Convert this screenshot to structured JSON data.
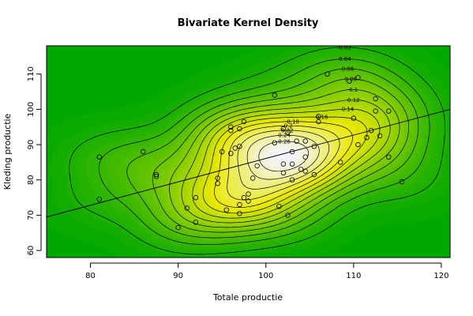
{
  "chart_data": {
    "type": "contour",
    "title": "Bivariate Kernel Density",
    "xlabel": "Totale productie",
    "ylabel": "Kleding productie",
    "xlim": [
      75,
      121
    ],
    "ylim": [
      58,
      118
    ],
    "xticks": [
      80,
      90,
      100,
      110,
      120
    ],
    "yticks": [
      60,
      70,
      80,
      90,
      100,
      110
    ],
    "grid": false,
    "colors": {
      "low": "#00a800",
      "mid": "#e8e800",
      "high": "#f5f5ff",
      "contour": "#000000",
      "points": "#000000",
      "regression_line": "#000000"
    },
    "density_peak": {
      "x": 102.5,
      "y": 84.5
    },
    "contour_levels": [
      "0.02",
      "0.04",
      "0.06",
      "0.08",
      "0.1",
      "0.12",
      "0.14",
      "0.16",
      "0.18",
      "0.2",
      "0.22",
      "0.24",
      "0.26"
    ],
    "regression_line": {
      "x": [
        75,
        121
      ],
      "y": [
        69.5,
        100
      ]
    },
    "points": [
      [
        81,
        86.5
      ],
      [
        81,
        74.5
      ],
      [
        86,
        88
      ],
      [
        87.5,
        81.5
      ],
      [
        87.5,
        81
      ],
      [
        90,
        66.5
      ],
      [
        91,
        72
      ],
      [
        92,
        75
      ],
      [
        92,
        68
      ],
      [
        94.5,
        80.5
      ],
      [
        94.5,
        79
      ],
      [
        95,
        88
      ],
      [
        95.5,
        71.5
      ],
      [
        96,
        95
      ],
      [
        96,
        94
      ],
      [
        96,
        87.5
      ],
      [
        96.5,
        89
      ],
      [
        97,
        94.5
      ],
      [
        97,
        73
      ],
      [
        97,
        70.5
      ],
      [
        97,
        89.5
      ],
      [
        97.5,
        96.5
      ],
      [
        97.5,
        75
      ],
      [
        98,
        76
      ],
      [
        98,
        74
      ],
      [
        98.5,
        80.5
      ],
      [
        99,
        84
      ],
      [
        101,
        104
      ],
      [
        101,
        90.5
      ],
      [
        101.5,
        72.5
      ],
      [
        102,
        94.5
      ],
      [
        102,
        84.5
      ],
      [
        102,
        82
      ],
      [
        102.5,
        93.5
      ],
      [
        102.5,
        70
      ],
      [
        103,
        88
      ],
      [
        103,
        84.5
      ],
      [
        103,
        80
      ],
      [
        103.5,
        91
      ],
      [
        104,
        83
      ],
      [
        104.5,
        91
      ],
      [
        104.5,
        86.5
      ],
      [
        104.5,
        82.5
      ],
      [
        105.5,
        89.5
      ],
      [
        105.5,
        81.5
      ],
      [
        106,
        98
      ],
      [
        106,
        96.5
      ],
      [
        107,
        110
      ],
      [
        108.5,
        85
      ],
      [
        109.5,
        108
      ],
      [
        110,
        97.5
      ],
      [
        110.5,
        90
      ],
      [
        110.5,
        109
      ],
      [
        111.5,
        92
      ],
      [
        112,
        94
      ],
      [
        112.5,
        103
      ],
      [
        112.5,
        99.5
      ],
      [
        113,
        92.5
      ],
      [
        114,
        99.5
      ],
      [
        114,
        86.5
      ],
      [
        115.5,
        79.5
      ]
    ]
  }
}
